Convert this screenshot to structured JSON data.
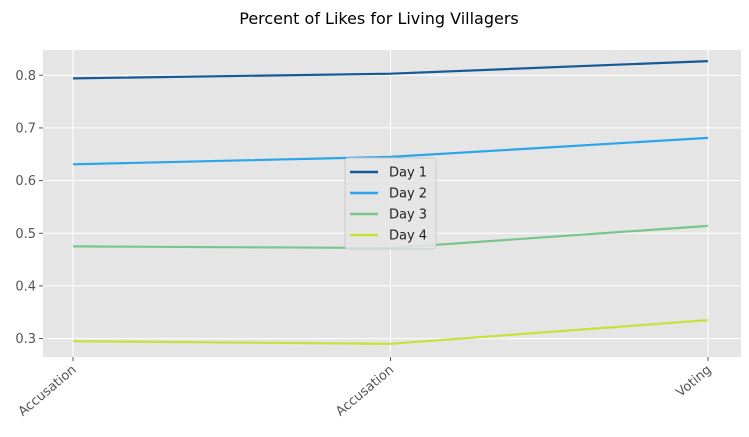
{
  "chart_data": {
    "type": "line",
    "title": "Percent of Likes for Living Villagers",
    "xlabel": "",
    "ylabel": "",
    "categories": [
      "Accusation",
      "Accusation",
      "Voting"
    ],
    "ylim": [
      0.265,
      0.848
    ],
    "yticks": [
      "0.3",
      "0.4",
      "0.5",
      "0.6",
      "0.7",
      "0.8"
    ],
    "grid": true,
    "legend_position": "center",
    "series": [
      {
        "name": "Day 1",
        "color": "#135a96",
        "values": [
          0.794,
          0.803,
          0.827
        ]
      },
      {
        "name": "Day 2",
        "color": "#2aa4ea",
        "values": [
          0.631,
          0.645,
          0.681
        ]
      },
      {
        "name": "Day 3",
        "color": "#79c68c",
        "values": [
          0.475,
          0.472,
          0.514
        ]
      },
      {
        "name": "Day 4",
        "color": "#c9e03b",
        "values": [
          0.295,
          0.29,
          0.335
        ]
      }
    ]
  }
}
